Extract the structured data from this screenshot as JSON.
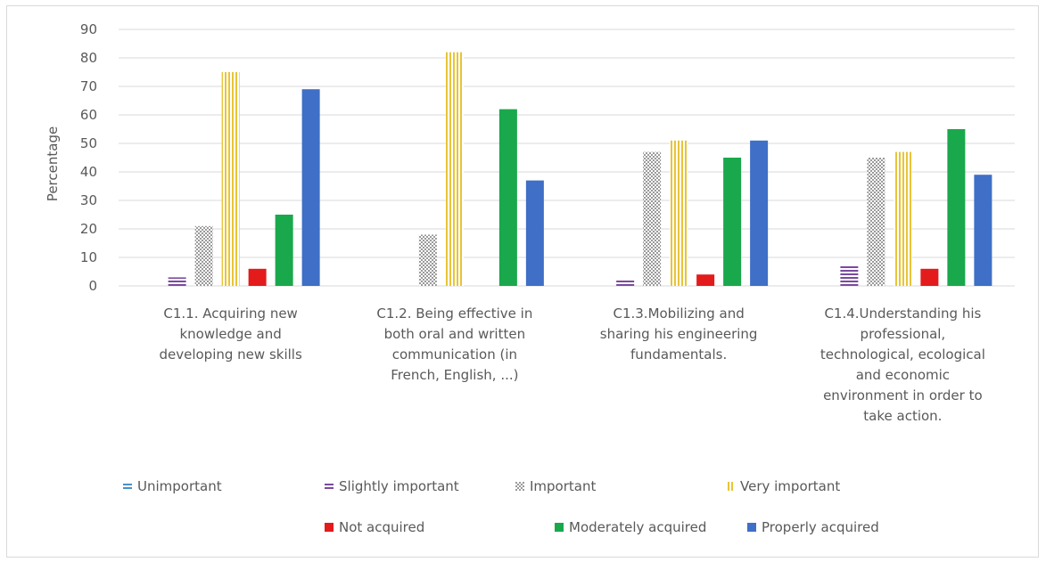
{
  "chart_data": {
    "type": "bar",
    "title": "",
    "xlabel": "",
    "ylabel": "Percentage",
    "ylim": [
      0,
      90
    ],
    "yticks": [
      0,
      10,
      20,
      30,
      40,
      50,
      60,
      70,
      80,
      90
    ],
    "grid": true,
    "legend_position": "bottom",
    "categories": [
      [
        "C1.1. Acquiring new",
        "knowledge and",
        "developing new skills"
      ],
      [
        "C1.2. Being effective in",
        "both oral and written",
        "communication (in",
        "French, English, ...)"
      ],
      [
        "C1.3.Mobilizing and",
        "sharing his engineering",
        "fundamentals."
      ],
      [
        "C1.4.Understanding his",
        "professional,",
        "technological, ecological",
        "and economic",
        "environment in order to",
        "take action."
      ]
    ],
    "series": [
      {
        "name": "Unimportant",
        "color": "#4a90c8",
        "pattern": "hstripes",
        "values": [
          0,
          0,
          0,
          0
        ]
      },
      {
        "name": "Slightly important",
        "color": "#7b4a9e",
        "pattern": "hstripes",
        "values": [
          3,
          0,
          2,
          7
        ]
      },
      {
        "name": "Important",
        "color": "#9a9a9a",
        "pattern": "checker",
        "values": [
          21,
          18,
          47,
          45
        ]
      },
      {
        "name": "Very important",
        "color": "#e8c438",
        "pattern": "vstripes",
        "values": [
          75,
          82,
          51,
          47
        ]
      },
      {
        "name": "Not acquired",
        "color": "#e31b1b",
        "pattern": "solid",
        "values": [
          6,
          0,
          4,
          6
        ]
      },
      {
        "name": "Moderately acquired",
        "color": "#1aa84c",
        "pattern": "solid",
        "values": [
          25,
          62,
          45,
          55
        ]
      },
      {
        "name": "Properly acquired",
        "color": "#3f6fc6",
        "pattern": "solid",
        "values": [
          69,
          37,
          51,
          39
        ]
      }
    ]
  }
}
